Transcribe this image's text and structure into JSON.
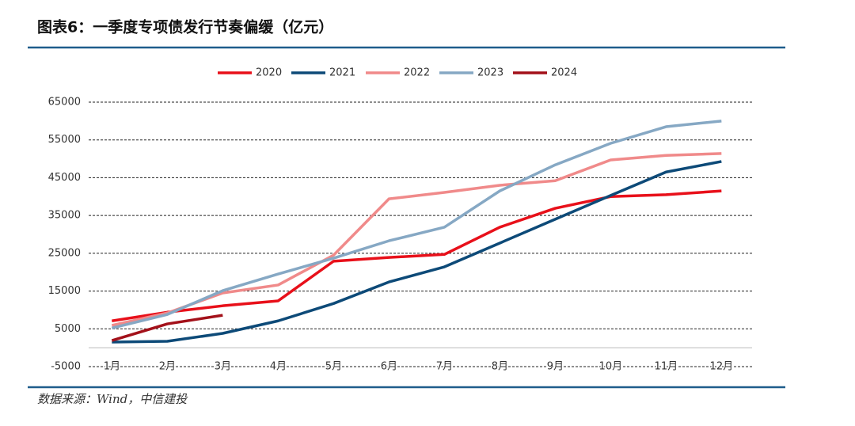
{
  "chart_data": {
    "type": "line",
    "title": "图表6：一季度专项债发行节奏偏缓（亿元）",
    "source": "数据来源：Wind，中信建投",
    "categories": [
      "1月",
      "2月",
      "3月",
      "4月",
      "5月",
      "6月",
      "7月",
      "8月",
      "9月",
      "10月",
      "11月",
      "12月"
    ],
    "ylim": [
      -5000,
      65000
    ],
    "yticks": [
      -5000,
      5000,
      15000,
      25000,
      35000,
      45000,
      55000,
      65000
    ],
    "grid": true,
    "legend": "top",
    "series": [
      {
        "name": "2020",
        "color": "#e8101a",
        "values": [
          7100,
          9400,
          11100,
          12400,
          22900,
          23900,
          24700,
          31900,
          36900,
          40000,
          40500,
          41500
        ]
      },
      {
        "name": "2021",
        "color": "#0d4a78",
        "values": [
          1500,
          1700,
          3800,
          7100,
          11700,
          17400,
          21400,
          27700,
          34000,
          40300,
          46500,
          49300
        ]
      },
      {
        "name": "2022",
        "color": "#f08a8a",
        "values": [
          5900,
          9200,
          14500,
          16600,
          24500,
          39400,
          41100,
          43000,
          44200,
          49700,
          50900,
          51400
        ]
      },
      {
        "name": "2023",
        "color": "#86a8c4",
        "values": [
          5200,
          8800,
          15100,
          19500,
          23700,
          28300,
          31900,
          41500,
          48400,
          54100,
          58500,
          60000
        ]
      },
      {
        "name": "2024",
        "color": "#a3111a",
        "values": [
          1900,
          6300,
          8600,
          null,
          null,
          null,
          null,
          null,
          null,
          null,
          null,
          null
        ]
      }
    ]
  }
}
